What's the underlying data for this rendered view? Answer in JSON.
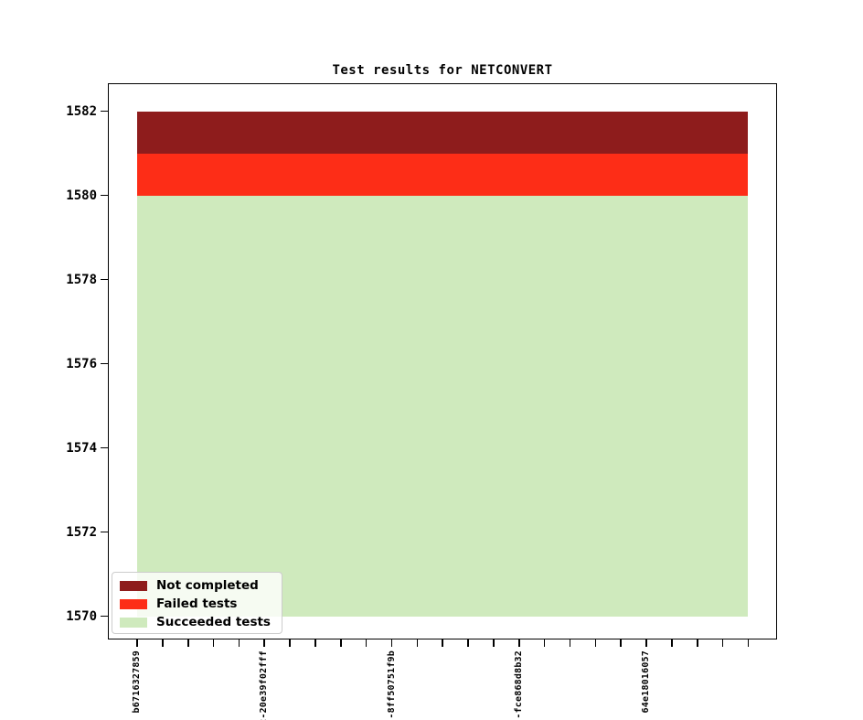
{
  "page": {
    "background_color": "#ffffff",
    "text_color": "#000000"
  },
  "chart_data": {
    "type": "stacked-bar",
    "title": "Test results for NETCONVERT",
    "grid": false,
    "x_axis": {
      "tick_count": 25,
      "label_every_n_ticks": 5,
      "tick_labels_visible": [
        "b6716327859",
        "2-20e39f02fff",
        "'-8ff50751f9b",
        "-fce868d8b32",
        "64e18016057"
      ],
      "labels_rotation_deg": 90
    },
    "y_axis": {
      "ticks": [
        1570,
        1572,
        1574,
        1576,
        1578,
        1580,
        1582
      ],
      "display_min": 1570,
      "display_max": 1582
    },
    "series": [
      {
        "name": "Not completed",
        "color": "#8e1c1c",
        "stack_from": 1581,
        "stack_to": 1582,
        "value": 1
      },
      {
        "name": "Failed tests",
        "color": "#fd2d17",
        "stack_from": 1580,
        "stack_to": 1581,
        "value": 1
      },
      {
        "name": "Succeeded tests",
        "color": "#cfeabd",
        "stack_from": 0,
        "stack_to": 1580,
        "value": 1580
      }
    ],
    "total_tests": 1582,
    "legend": {
      "position": "lower-left",
      "entries": [
        "Not completed",
        "Failed tests",
        "Succeeded tests"
      ]
    }
  }
}
